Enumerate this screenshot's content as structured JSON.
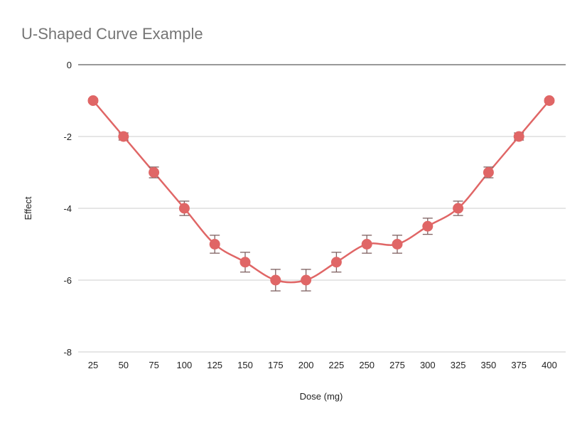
{
  "chart_data": {
    "type": "line",
    "title": "U-Shaped Curve Example",
    "xlabel": "Dose (mg)",
    "ylabel": "Effect",
    "x": [
      25,
      50,
      75,
      100,
      125,
      150,
      175,
      200,
      225,
      250,
      275,
      300,
      325,
      350,
      375,
      400
    ],
    "series": [
      {
        "values": [
          -1,
          -2,
          -3,
          -4,
          -5,
          -5.5,
          -6,
          -6,
          -5.5,
          -5,
          -5,
          -4.5,
          -4,
          -3,
          -2,
          -1
        ],
        "errors": [
          0.05,
          0.1,
          0.15,
          0.2,
          0.25,
          0.275,
          0.3,
          0.3,
          0.275,
          0.25,
          0.25,
          0.225,
          0.2,
          0.15,
          0.1,
          0.05
        ],
        "color": "#e06666"
      }
    ],
    "ylim": [
      -8,
      0
    ],
    "yticks": [
      0,
      -2,
      -4,
      -6,
      -8
    ],
    "grid": true,
    "smooth": true,
    "legend": "none",
    "colors": {
      "line": "#e06666",
      "error_bar": "#7f6060",
      "grid": "#cccccc",
      "zero_axis": "#333333",
      "title": "#757575"
    }
  }
}
